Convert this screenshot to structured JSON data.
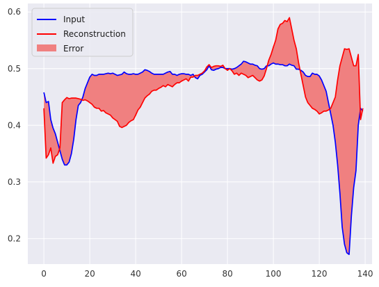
{
  "chart_data": {
    "type": "line",
    "title": "",
    "xlabel": "",
    "ylabel": "",
    "xlim": [
      -7,
      143
    ],
    "ylim": [
      0.155,
      0.615
    ],
    "xticks": [
      0,
      20,
      40,
      60,
      80,
      100,
      120,
      140
    ],
    "yticks": [
      0.2,
      0.3,
      0.4,
      0.5,
      0.6
    ],
    "grid": true,
    "legend_position": "top-left",
    "background": "#eaeaf2",
    "colors": {
      "input": "#0000ff",
      "reconstruction": "#ff0000",
      "error": "#f08080"
    },
    "legend": {
      "input": "Input",
      "reconstruction": "Reconstruction",
      "error": "Error"
    },
    "series": [
      {
        "name": "Input",
        "x": [
          0,
          1,
          2,
          3,
          4,
          5,
          6,
          7,
          8,
          9,
          10,
          11,
          12,
          13,
          14,
          15,
          16,
          17,
          18,
          19,
          20,
          21,
          22,
          23,
          24,
          25,
          26,
          27,
          28,
          29,
          30,
          31,
          32,
          33,
          34,
          35,
          36,
          37,
          38,
          39,
          40,
          41,
          42,
          43,
          44,
          45,
          46,
          47,
          48,
          49,
          50,
          51,
          52,
          53,
          54,
          55,
          56,
          57,
          58,
          59,
          60,
          61,
          62,
          63,
          64,
          65,
          66,
          67,
          68,
          69,
          70,
          71,
          72,
          73,
          74,
          75,
          76,
          77,
          78,
          79,
          80,
          81,
          82,
          83,
          84,
          85,
          86,
          87,
          88,
          89,
          90,
          91,
          92,
          93,
          94,
          95,
          96,
          97,
          98,
          99,
          100,
          101,
          102,
          103,
          104,
          105,
          106,
          107,
          108,
          109,
          110,
          111,
          112,
          113,
          114,
          115,
          116,
          117,
          118,
          119,
          120,
          121,
          122,
          123,
          124,
          125,
          126,
          127,
          128,
          129,
          130,
          131,
          132,
          133,
          134,
          135,
          136,
          137,
          138,
          139
        ],
        "values": [
          0.458,
          0.44,
          0.442,
          0.41,
          0.395,
          0.385,
          0.37,
          0.355,
          0.34,
          0.33,
          0.33,
          0.335,
          0.35,
          0.375,
          0.41,
          0.435,
          0.44,
          0.45,
          0.465,
          0.475,
          0.485,
          0.49,
          0.488,
          0.488,
          0.49,
          0.49,
          0.49,
          0.491,
          0.492,
          0.491,
          0.492,
          0.49,
          0.488,
          0.489,
          0.49,
          0.494,
          0.491,
          0.49,
          0.49,
          0.491,
          0.49,
          0.49,
          0.492,
          0.494,
          0.498,
          0.497,
          0.495,
          0.492,
          0.49,
          0.49,
          0.49,
          0.49,
          0.49,
          0.492,
          0.494,
          0.495,
          0.49,
          0.49,
          0.488,
          0.49,
          0.491,
          0.491,
          0.49,
          0.49,
          0.488,
          0.49,
          0.484,
          0.482,
          0.488,
          0.49,
          0.494,
          0.498,
          0.505,
          0.498,
          0.497,
          0.499,
          0.5,
          0.502,
          0.502,
          0.5,
          0.5,
          0.5,
          0.499,
          0.5,
          0.502,
          0.505,
          0.508,
          0.513,
          0.512,
          0.51,
          0.508,
          0.508,
          0.506,
          0.505,
          0.5,
          0.499,
          0.5,
          0.505,
          0.505,
          0.508,
          0.51,
          0.508,
          0.508,
          0.507,
          0.507,
          0.505,
          0.505,
          0.508,
          0.506,
          0.505,
          0.499,
          0.499,
          0.497,
          0.494,
          0.488,
          0.486,
          0.486,
          0.492,
          0.49,
          0.49,
          0.487,
          0.48,
          0.47,
          0.46,
          0.44,
          0.42,
          0.4,
          0.37,
          0.33,
          0.28,
          0.22,
          0.19,
          0.175,
          0.172,
          0.24,
          0.29,
          0.32,
          0.4,
          0.43,
          0.425
        ]
      },
      {
        "name": "Reconstruction",
        "x": [
          0,
          1,
          2,
          3,
          4,
          5,
          6,
          7,
          8,
          9,
          10,
          11,
          12,
          13,
          14,
          15,
          16,
          17,
          18,
          19,
          20,
          21,
          22,
          23,
          24,
          25,
          26,
          27,
          28,
          29,
          30,
          31,
          32,
          33,
          34,
          35,
          36,
          37,
          38,
          39,
          40,
          41,
          42,
          43,
          44,
          45,
          46,
          47,
          48,
          49,
          50,
          51,
          52,
          53,
          54,
          55,
          56,
          57,
          58,
          59,
          60,
          61,
          62,
          63,
          64,
          65,
          66,
          67,
          68,
          69,
          70,
          71,
          72,
          73,
          74,
          75,
          76,
          77,
          78,
          79,
          80,
          81,
          82,
          83,
          84,
          85,
          86,
          87,
          88,
          89,
          90,
          91,
          92,
          93,
          94,
          95,
          96,
          97,
          98,
          99,
          100,
          101,
          102,
          103,
          104,
          105,
          106,
          107,
          108,
          109,
          110,
          111,
          112,
          113,
          114,
          115,
          116,
          117,
          118,
          119,
          120,
          121,
          122,
          123,
          124,
          125,
          126,
          127,
          128,
          129,
          130,
          131,
          132,
          133,
          134,
          135,
          136,
          137,
          138,
          139
        ],
        "values": [
          0.43,
          0.342,
          0.348,
          0.36,
          0.333,
          0.345,
          0.348,
          0.36,
          0.44,
          0.445,
          0.449,
          0.447,
          0.448,
          0.448,
          0.448,
          0.447,
          0.446,
          0.444,
          0.445,
          0.443,
          0.44,
          0.437,
          0.432,
          0.43,
          0.43,
          0.425,
          0.426,
          0.422,
          0.42,
          0.418,
          0.413,
          0.41,
          0.407,
          0.398,
          0.396,
          0.398,
          0.4,
          0.405,
          0.408,
          0.41,
          0.418,
          0.427,
          0.432,
          0.44,
          0.448,
          0.452,
          0.455,
          0.46,
          0.462,
          0.462,
          0.465,
          0.467,
          0.47,
          0.468,
          0.472,
          0.47,
          0.468,
          0.472,
          0.475,
          0.475,
          0.478,
          0.48,
          0.482,
          0.478,
          0.485,
          0.485,
          0.488,
          0.488,
          0.49,
          0.492,
          0.496,
          0.503,
          0.507,
          0.502,
          0.504,
          0.505,
          0.505,
          0.504,
          0.506,
          0.5,
          0.497,
          0.5,
          0.496,
          0.49,
          0.492,
          0.488,
          0.492,
          0.49,
          0.488,
          0.484,
          0.486,
          0.488,
          0.484,
          0.48,
          0.478,
          0.48,
          0.487,
          0.5,
          0.515,
          0.525,
          0.538,
          0.55,
          0.57,
          0.578,
          0.58,
          0.585,
          0.583,
          0.59,
          0.57,
          0.55,
          0.535,
          0.51,
          0.49,
          0.47,
          0.45,
          0.44,
          0.435,
          0.43,
          0.428,
          0.425,
          0.42,
          0.422,
          0.425,
          0.425,
          0.427,
          0.43,
          0.44,
          0.45,
          0.48,
          0.505,
          0.52,
          0.535,
          0.534,
          0.535,
          0.52,
          0.505,
          0.505,
          0.525,
          0.41,
          0.43
        ]
      }
    ]
  }
}
